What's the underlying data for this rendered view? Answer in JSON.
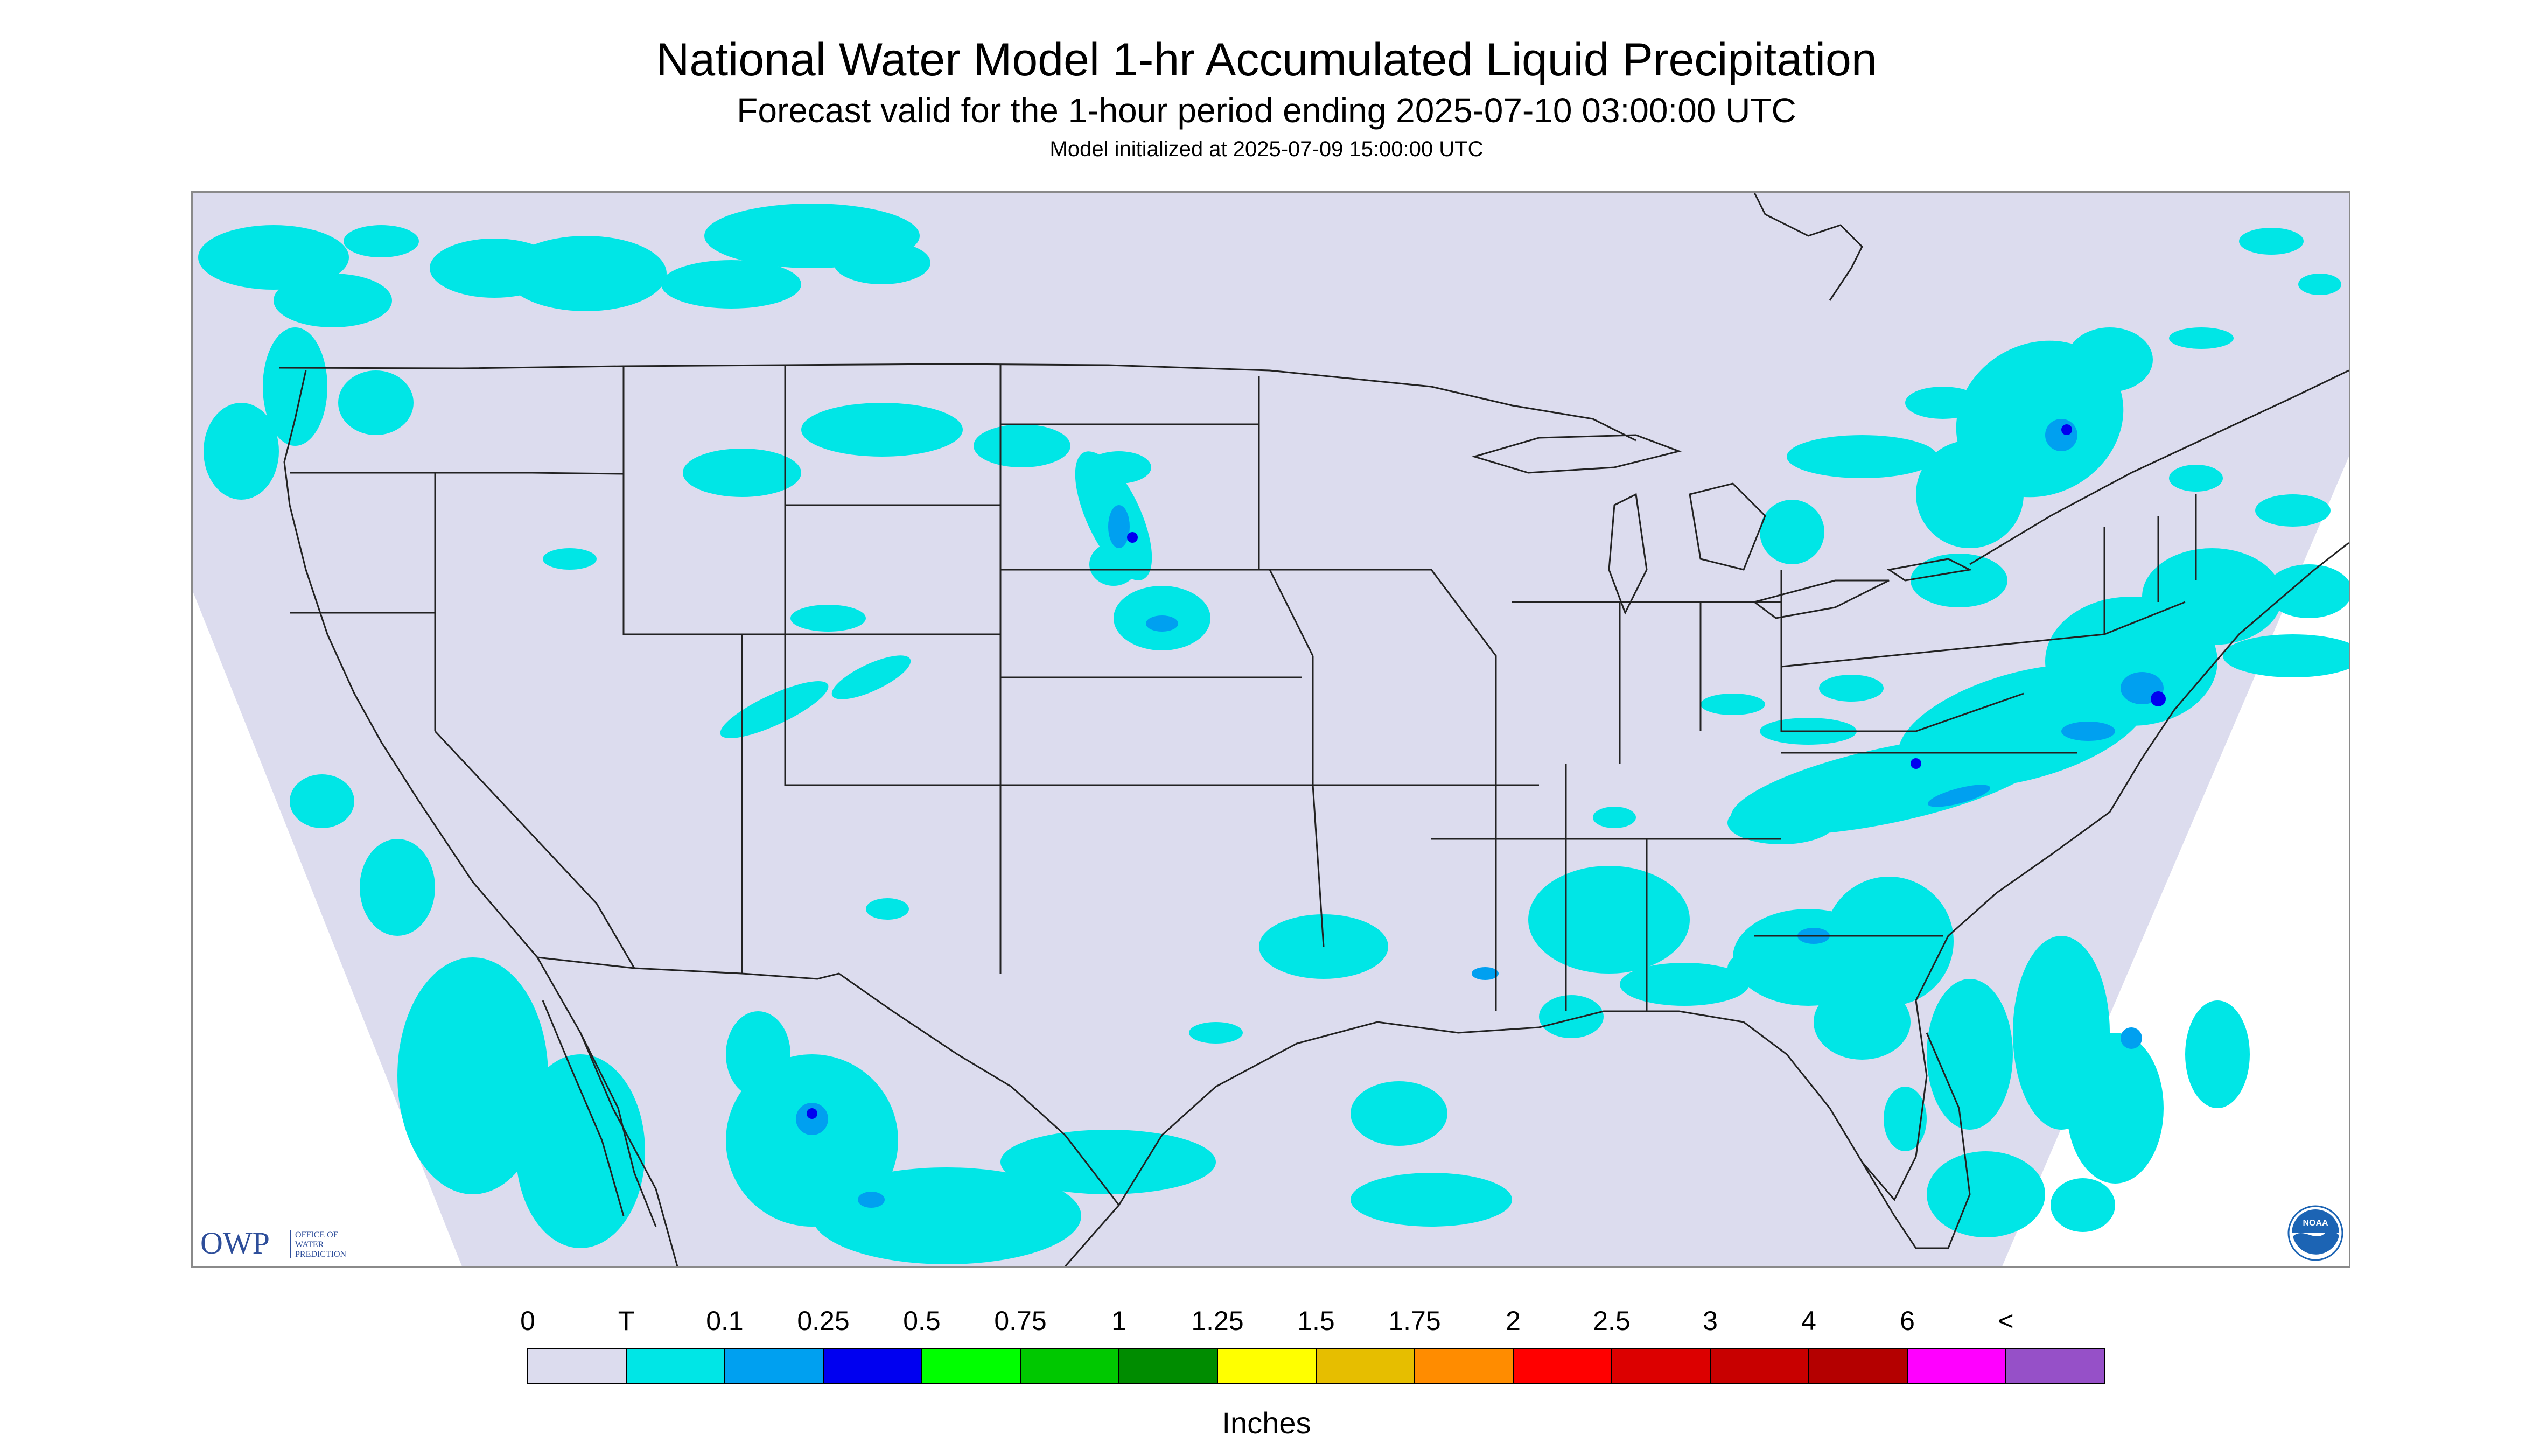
{
  "header": {
    "title": "National Water Model 1-hr Accumulated Liquid Precipitation",
    "subtitle": "Forecast valid for the 1-hour period ending 2025-07-10 03:00:00 UTC",
    "init": "Model initialized at 2025-07-09 15:00:00 UTC"
  },
  "map": {
    "background_color": "#DCDCEE",
    "outside_color": "#FFFFFF",
    "border_color": "#222222"
  },
  "logos": {
    "owp_letters": "OWP",
    "owp_text_lines": [
      "OFFICE OF",
      "WATER",
      "PREDICTION"
    ],
    "noaa_text": "NOAA",
    "owp_color": "#2E4E9A",
    "noaa_color": "#1C64B4"
  },
  "legend": {
    "labels": [
      "0",
      "T",
      "0.1",
      "0.25",
      "0.5",
      "0.75",
      "1",
      "1.25",
      "1.5",
      "1.75",
      "2",
      "2.5",
      "3",
      "4",
      "6",
      "<"
    ],
    "colors": [
      "#DCDCEE",
      "#00E6E6",
      "#00A0F0",
      "#0000F0",
      "#00FF00",
      "#00C800",
      "#008C00",
      "#FFFF00",
      "#E6BE00",
      "#FF8C00",
      "#FF0000",
      "#DC0000",
      "#C80000",
      "#B40000",
      "#FF00FF",
      "#9650C8"
    ],
    "units": "Inches"
  }
}
